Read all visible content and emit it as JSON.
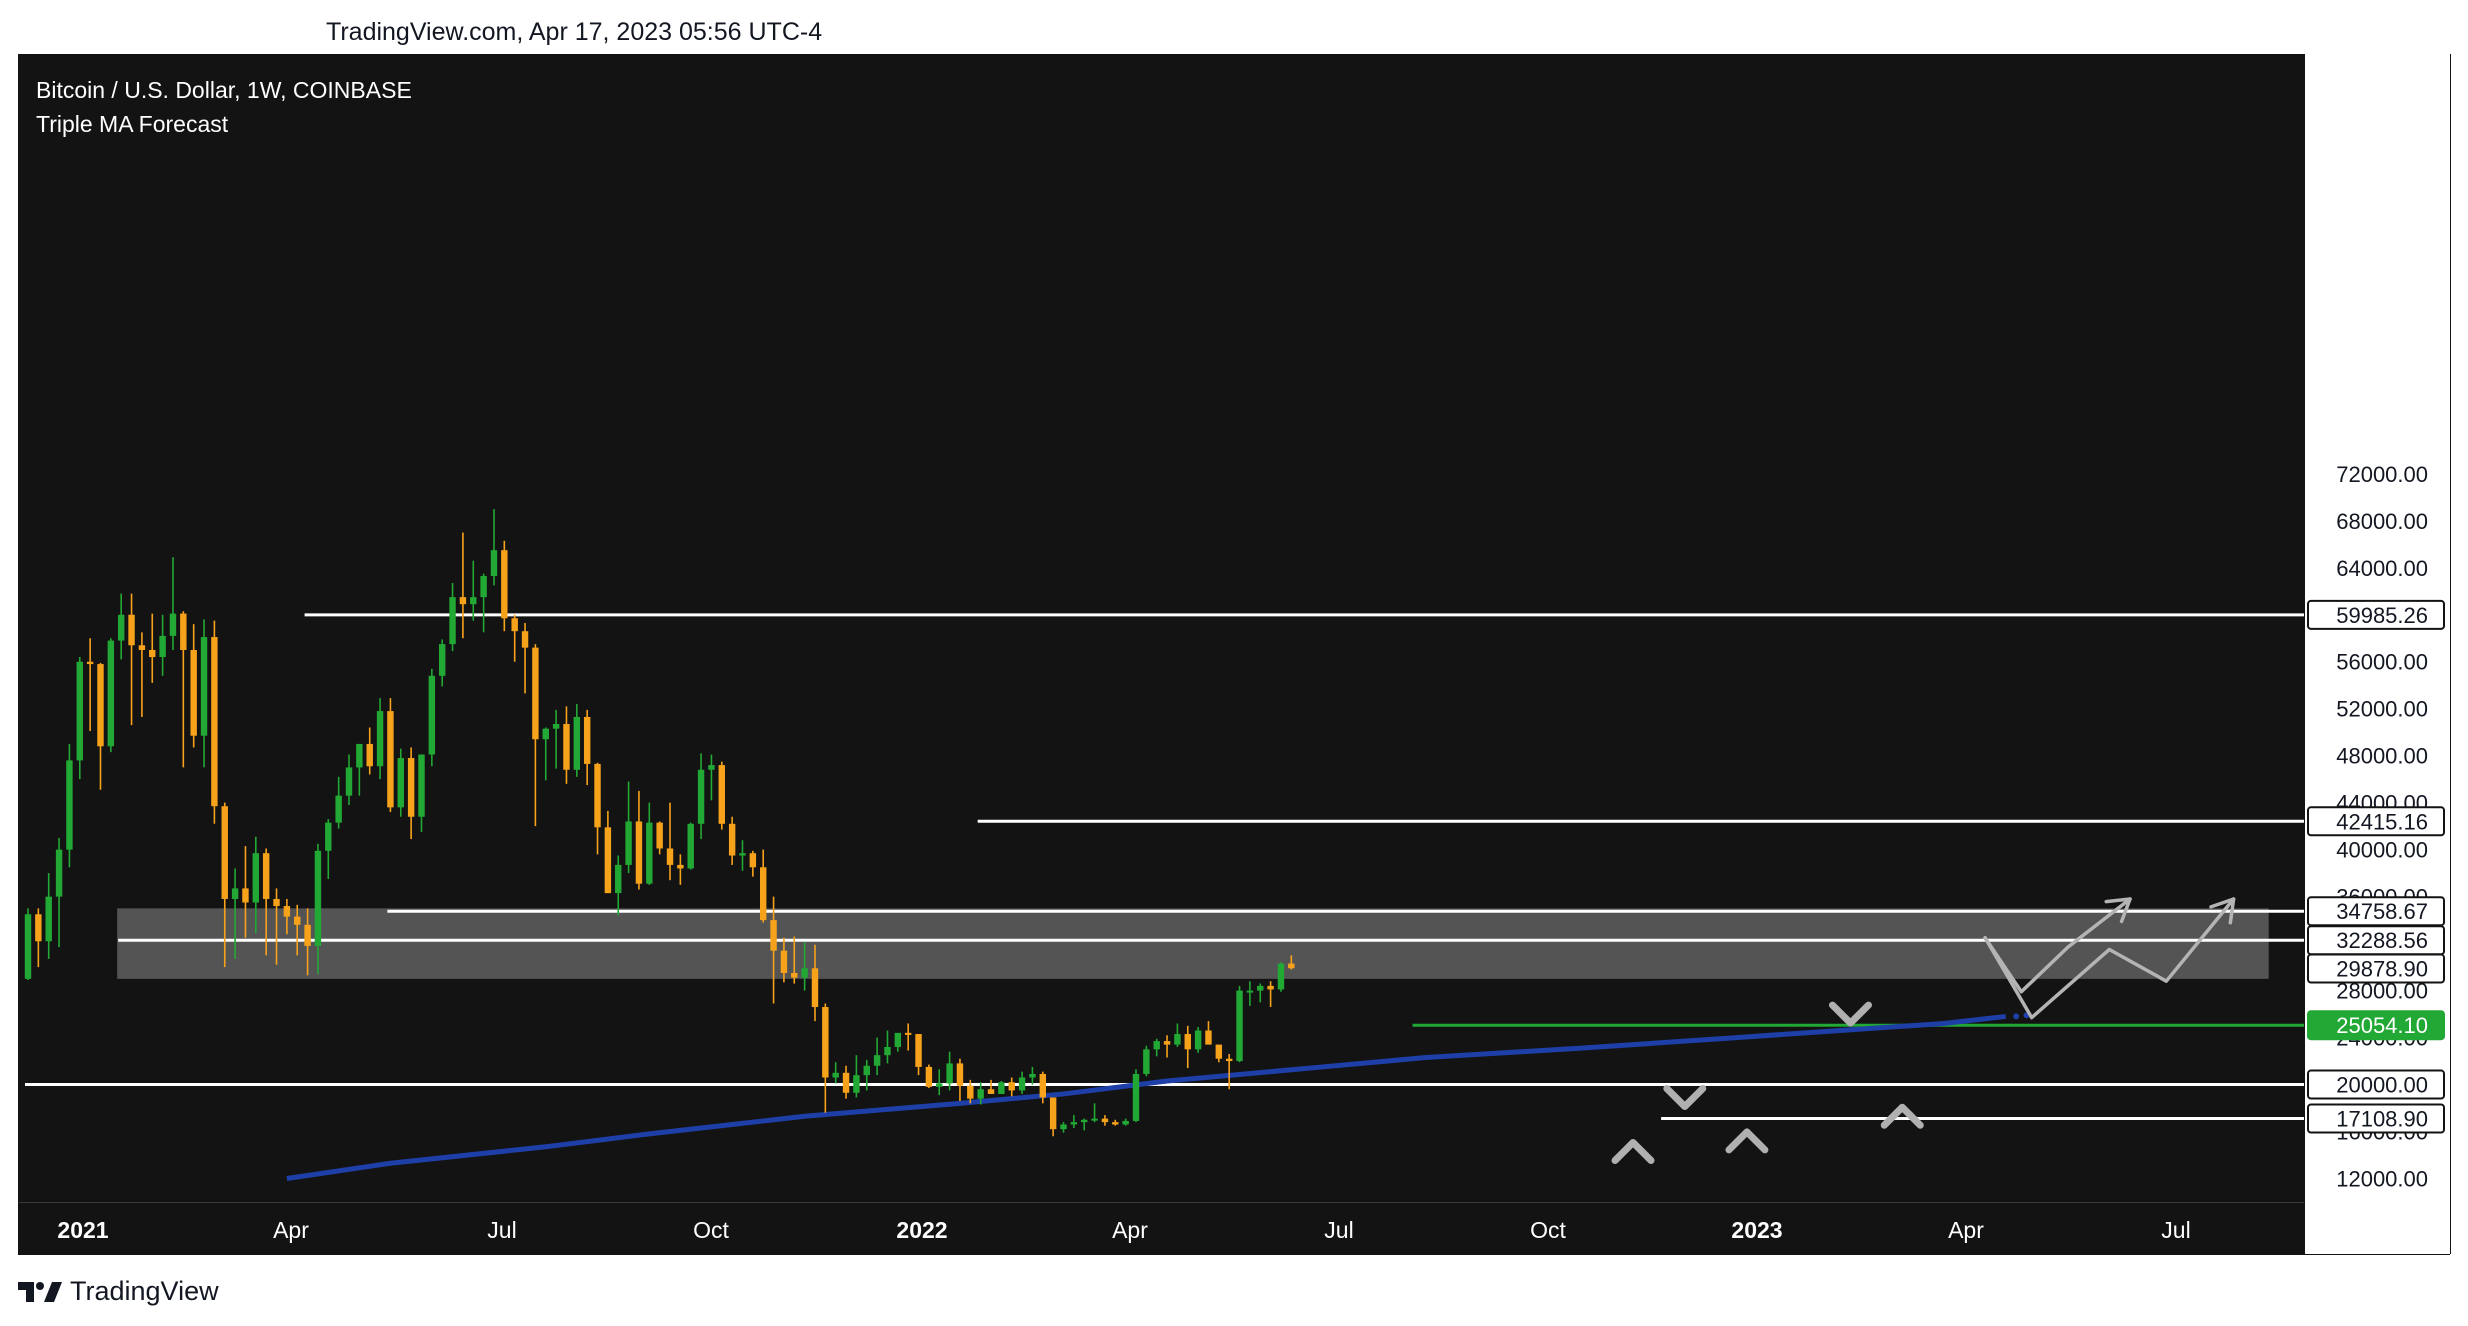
{
  "header": {
    "caption": "TradingView.com, Apr 17, 2023 05:56 UTC-4"
  },
  "legend": {
    "symbol": "Bitcoin / U.S. Dollar, 1W, COINBASE",
    "indicator": "Triple MA Forecast"
  },
  "footer": {
    "brand": "TradingView"
  },
  "colors": {
    "background": "#131313",
    "up": "#22a834",
    "down": "#f7a21b",
    "level": "#ffffff",
    "ma": "#1e3fa8",
    "support": "#22a834",
    "zone": "rgba(255,255,255,0.28)",
    "forecast": "#b4b4b4"
  },
  "chart_data": {
    "type": "candlestick",
    "title": "Bitcoin / U.S. Dollar, 1W, COINBASE",
    "x_axis": {
      "labels": [
        "2021",
        "Apr",
        "Jul",
        "Oct",
        "2022",
        "Apr",
        "Jul",
        "Oct",
        "2023",
        "Apr",
        "Jul"
      ],
      "bold": [
        "2021",
        "2022",
        "2023"
      ]
    },
    "y_axis": {
      "min": 10000,
      "max": 73000,
      "ticks": [
        "72000.00",
        "68000.00",
        "64000.00",
        "60000.00",
        "56000.00",
        "52000.00",
        "48000.00",
        "44000.00",
        "40000.00",
        "36000.00",
        "32000.00",
        "28000.00",
        "24000.00",
        "20000.00",
        "16000.00",
        "12000.00"
      ]
    },
    "price_labels": [
      {
        "value": 59985.26,
        "text": "59985.26",
        "style": "white"
      },
      {
        "value": 42415.16,
        "text": "42415.16",
        "style": "white"
      },
      {
        "value": 34758.67,
        "text": "34758.67",
        "style": "white"
      },
      {
        "value": 32288.56,
        "text": "32288.56",
        "style": "white"
      },
      {
        "value": 29878.9,
        "text": "29878.90",
        "style": "white"
      },
      {
        "value": 25054.1,
        "text": "25054.10",
        "style": "green"
      },
      {
        "value": 20000.0,
        "text": "20000.00",
        "style": "white"
      },
      {
        "value": 17108.9,
        "text": "17108.90",
        "style": "white"
      }
    ],
    "levels": [
      {
        "value": 59985.26,
        "from": 27
      },
      {
        "value": 42415.16,
        "from": 92
      },
      {
        "value": 34758.67,
        "from": 35
      },
      {
        "value": 32288.56,
        "from": 9
      },
      {
        "value": 20000.0,
        "from": 0
      },
      {
        "value": 17108.9,
        "from": 158
      }
    ],
    "support_line": {
      "value": 25054.1,
      "from": 134
    },
    "zone": {
      "from": 9,
      "to": 216,
      "low": 29000,
      "high": 35000
    },
    "moving_average": [
      [
        25,
        12000
      ],
      [
        35,
        13300
      ],
      [
        50,
        14700
      ],
      [
        60,
        15800
      ],
      [
        75,
        17300
      ],
      [
        90,
        18400
      ],
      [
        100,
        19200
      ],
      [
        110,
        20300
      ],
      [
        125,
        21500
      ],
      [
        135,
        22300
      ],
      [
        150,
        23100
      ],
      [
        165,
        24000
      ],
      [
        175,
        24600
      ],
      [
        185,
        25200
      ],
      [
        191,
        25800
      ]
    ],
    "forecast_paths": [
      [
        [
          189,
          32500
        ],
        [
          192.5,
          27900
        ],
        [
          197,
          31700
        ],
        [
          203,
          35800
        ]
      ],
      [
        [
          189,
          32500
        ],
        [
          193.5,
          25700
        ],
        [
          201,
          31500
        ],
        [
          206.5,
          28800
        ],
        [
          213,
          35800
        ]
      ]
    ],
    "markers": [
      {
        "week": 155,
        "value": 14300,
        "dir": "up"
      },
      {
        "week": 160,
        "value": 18900,
        "dir": "down"
      },
      {
        "week": 166,
        "value": 15200,
        "dir": "up"
      },
      {
        "week": 176,
        "value": 26000,
        "dir": "down"
      },
      {
        "week": 181,
        "value": 17300,
        "dir": "up"
      }
    ],
    "candles": [
      [
        29000,
        35000,
        28900,
        34500
      ],
      [
        34500,
        35000,
        30000,
        32200
      ],
      [
        32200,
        38000,
        30700,
        36000
      ],
      [
        36000,
        41000,
        31700,
        40000
      ],
      [
        40000,
        49000,
        38500,
        47600
      ],
      [
        47600,
        56400,
        46000,
        56000
      ],
      [
        56000,
        58000,
        50100,
        55800
      ],
      [
        55800,
        55900,
        45100,
        48800
      ],
      [
        48800,
        58000,
        48300,
        57800
      ],
      [
        57800,
        61800,
        56200,
        60000
      ],
      [
        60000,
        61800,
        50600,
        57400
      ],
      [
        57400,
        58500,
        51300,
        57000
      ],
      [
        57000,
        60100,
        54200,
        56400
      ],
      [
        56400,
        60000,
        54800,
        58200
      ],
      [
        58200,
        64900,
        57000,
        60100
      ],
      [
        60100,
        60300,
        47000,
        57000
      ],
      [
        57000,
        59200,
        48700,
        49700
      ],
      [
        49700,
        59600,
        47000,
        58100
      ],
      [
        58100,
        59500,
        42200,
        43700
      ],
      [
        43700,
        44000,
        30000,
        35800
      ],
      [
        35800,
        38400,
        30700,
        36700
      ],
      [
        36700,
        40300,
        32500,
        35500
      ],
      [
        35500,
        41100,
        32900,
        39700
      ],
      [
        39700,
        40100,
        31000,
        35800
      ],
      [
        35800,
        36700,
        30200,
        35200
      ],
      [
        35200,
        35800,
        32800,
        34300
      ],
      [
        34300,
        35300,
        31000,
        33600
      ],
      [
        33600,
        35000,
        29300,
        31800
      ],
      [
        31800,
        40500,
        29400,
        39900
      ],
      [
        39900,
        42600,
        37500,
        42300
      ],
      [
        42300,
        46200,
        41800,
        44600
      ],
      [
        44600,
        48100,
        43800,
        47000
      ],
      [
        47000,
        49000,
        44600,
        49000
      ],
      [
        49000,
        50400,
        46400,
        47100
      ],
      [
        47100,
        52900,
        46000,
        51800
      ],
      [
        51800,
        52900,
        43200,
        43600
      ],
      [
        43600,
        48600,
        42800,
        47800
      ],
      [
        47800,
        48700,
        40900,
        42800
      ],
      [
        42800,
        48100,
        41500,
        48100
      ],
      [
        48100,
        55400,
        47100,
        54800
      ],
      [
        54800,
        57900,
        53900,
        57500
      ],
      [
        57500,
        62700,
        56900,
        61500
      ],
      [
        61500,
        67000,
        58000,
        60900
      ],
      [
        60900,
        64600,
        59500,
        61500
      ],
      [
        61500,
        63500,
        58500,
        63300
      ],
      [
        63300,
        69000,
        62500,
        65500
      ],
      [
        65500,
        66300,
        58600,
        59700
      ],
      [
        59700,
        60000,
        56000,
        58600
      ],
      [
        58600,
        59300,
        53300,
        57200
      ],
      [
        57200,
        57500,
        42000,
        49400
      ],
      [
        49400,
        50400,
        45900,
        50300
      ],
      [
        50300,
        51900,
        46900,
        50700
      ],
      [
        50700,
        52200,
        45600,
        46800
      ],
      [
        46800,
        52400,
        46200,
        51300
      ],
      [
        51300,
        51900,
        45500,
        47300
      ],
      [
        47300,
        47400,
        39600,
        41900
      ],
      [
        41900,
        43300,
        36300,
        36300
      ],
      [
        36300,
        39500,
        34400,
        38700
      ],
      [
        38700,
        45800,
        38000,
        42400
      ],
      [
        42400,
        45000,
        36600,
        37100
      ],
      [
        37100,
        44000,
        37000,
        42300
      ],
      [
        42300,
        42400,
        39600,
        40100
      ],
      [
        40100,
        44000,
        37400,
        38700
      ],
      [
        38700,
        39600,
        37000,
        38400
      ],
      [
        38400,
        42300,
        38300,
        42200
      ],
      [
        42200,
        48200,
        40900,
        46800
      ],
      [
        46800,
        48100,
        44200,
        47200
      ],
      [
        47200,
        47500,
        41700,
        42200
      ],
      [
        42200,
        42800,
        38700,
        39500
      ],
      [
        39500,
        40800,
        38200,
        39700
      ],
      [
        39700,
        39900,
        37700,
        38500
      ],
      [
        38500,
        40000,
        33800,
        34000
      ],
      [
        34000,
        36000,
        26900,
        31400
      ],
      [
        31400,
        32500,
        28700,
        29500
      ],
      [
        29500,
        32600,
        28600,
        29100
      ],
      [
        29100,
        32100,
        28000,
        29900
      ],
      [
        29900,
        31900,
        25400,
        26600
      ],
      [
        26600,
        26900,
        17600,
        20600
      ],
      [
        20600,
        21900,
        20100,
        21000
      ],
      [
        21000,
        21600,
        18800,
        19300
      ],
      [
        19300,
        22500,
        18900,
        20800
      ],
      [
        20800,
        22100,
        19500,
        21600
      ],
      [
        21600,
        24000,
        20800,
        22500
      ],
      [
        22500,
        24600,
        21800,
        23200
      ],
      [
        23200,
        24200,
        22800,
        24400
      ],
      [
        24400,
        25200,
        22900,
        24300
      ],
      [
        24300,
        24300,
        20800,
        21500
      ],
      [
        21500,
        21700,
        19700,
        19800
      ],
      [
        19800,
        21300,
        19100,
        20100
      ],
      [
        20100,
        22800,
        19500,
        21800
      ],
      [
        21800,
        22200,
        18600,
        19900
      ],
      [
        19900,
        20400,
        18400,
        18800
      ],
      [
        18800,
        20200,
        18300,
        19600
      ],
      [
        19600,
        20400,
        19200,
        19200
      ],
      [
        19200,
        20300,
        19200,
        20200
      ],
      [
        20200,
        20600,
        19000,
        19500
      ],
      [
        19500,
        21100,
        19200,
        20600
      ],
      [
        20600,
        21500,
        20000,
        20900
      ],
      [
        20900,
        21100,
        18400,
        18900
      ],
      [
        18900,
        18900,
        15600,
        16200
      ],
      [
        16200,
        16800,
        15900,
        16600
      ],
      [
        16600,
        17400,
        16300,
        16800
      ],
      [
        16800,
        17100,
        16100,
        17000
      ],
      [
        17000,
        18400,
        16800,
        17100
      ],
      [
        17100,
        17400,
        16500,
        16800
      ],
      [
        16800,
        17000,
        16500,
        16600
      ],
      [
        16600,
        17100,
        16500,
        16900
      ],
      [
        16900,
        21300,
        16800,
        20900
      ],
      [
        20900,
        23300,
        20700,
        23000
      ],
      [
        23000,
        23900,
        22400,
        23700
      ],
      [
        23700,
        24200,
        22300,
        23400
      ],
      [
        23400,
        25200,
        23200,
        24300
      ],
      [
        24300,
        25000,
        21400,
        23000
      ],
      [
        23000,
        24900,
        22700,
        24600
      ],
      [
        24600,
        25400,
        23900,
        23400
      ],
      [
        23400,
        23400,
        21900,
        22200
      ],
      [
        22200,
        22600,
        19600,
        22000
      ],
      [
        22000,
        28400,
        21900,
        28000
      ],
      [
        28000,
        28800,
        26700,
        28000
      ],
      [
        28000,
        28600,
        27000,
        28400
      ],
      [
        28400,
        28800,
        26600,
        28100
      ],
      [
        28100,
        30400,
        27900,
        30300
      ],
      [
        30300,
        31000,
        29800,
        29900
      ]
    ]
  }
}
